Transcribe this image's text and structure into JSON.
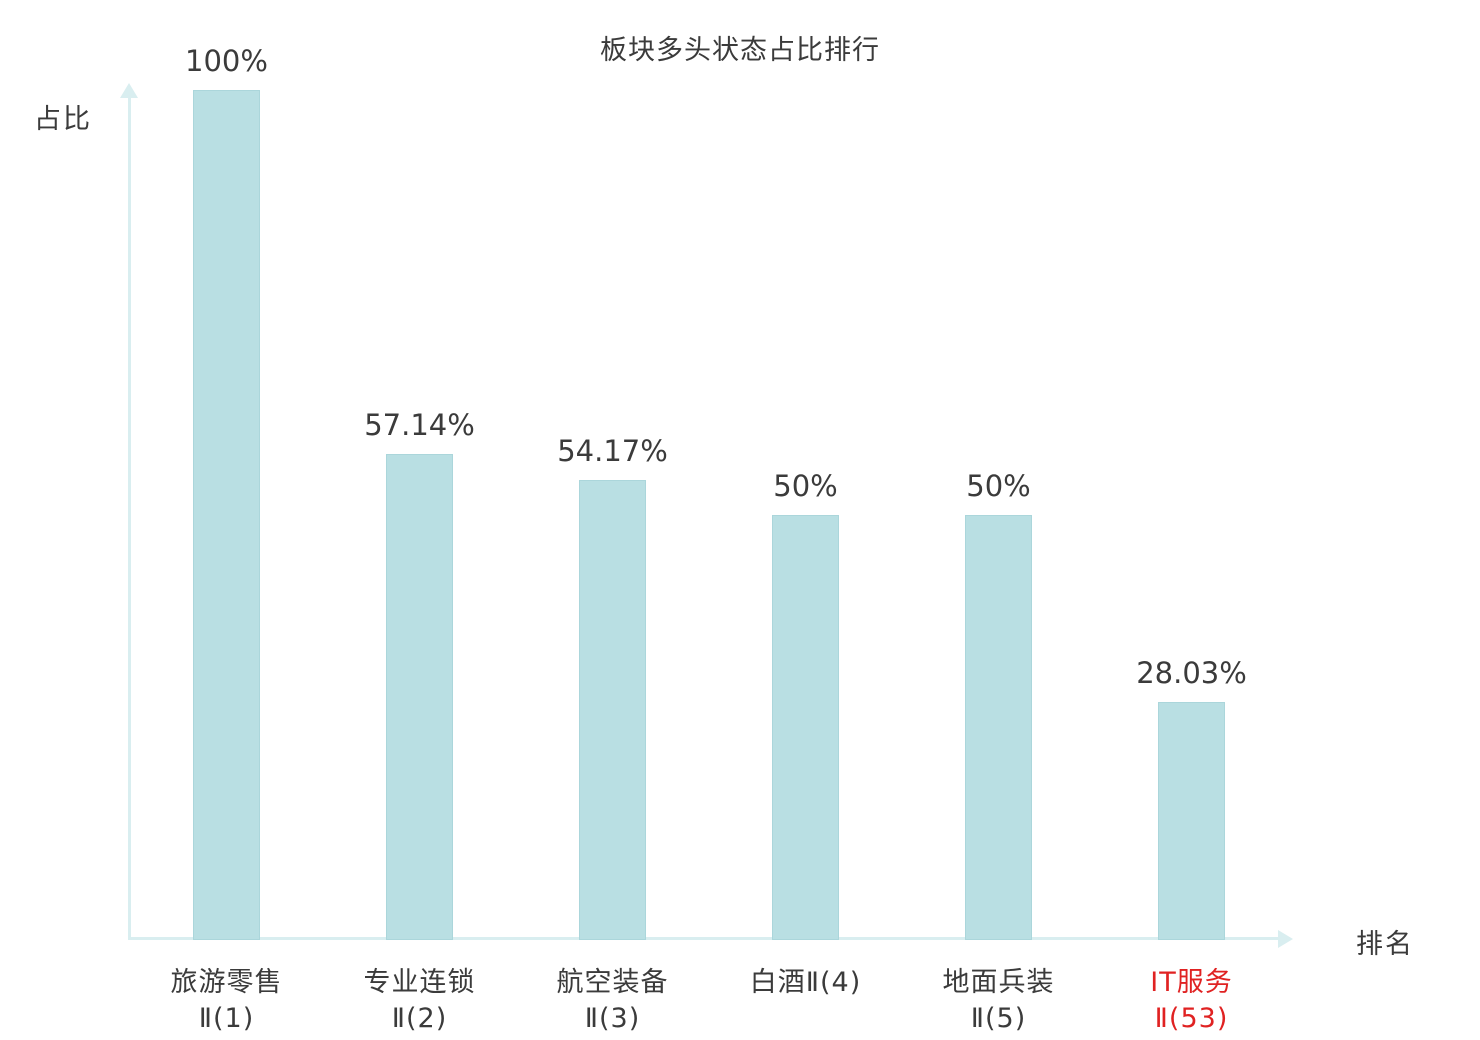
{
  "chart_data": {
    "type": "bar",
    "title": "板块多头状态占比排行",
    "xlabel": "排名",
    "ylabel": "占比",
    "categories": [
      {
        "lines": [
          "旅游零售",
          "Ⅱ(1)"
        ],
        "highlight": false
      },
      {
        "lines": [
          "专业连锁",
          "Ⅱ(2)"
        ],
        "highlight": false
      },
      {
        "lines": [
          "航空装备",
          "Ⅱ(3)"
        ],
        "highlight": false
      },
      {
        "lines": [
          "白酒Ⅱ(4)"
        ],
        "highlight": false
      },
      {
        "lines": [
          "地面兵装",
          "Ⅱ(5)"
        ],
        "highlight": false
      },
      {
        "lines": [
          "IT服务",
          "Ⅱ(53)"
        ],
        "highlight": true
      }
    ],
    "values": [
      100,
      57.14,
      54.17,
      50,
      50,
      28.03
    ],
    "value_labels": [
      "100%",
      "57.14%",
      "54.17%",
      "50%",
      "50%",
      "28.03%"
    ],
    "ylim": [
      0,
      100
    ],
    "grid": false,
    "legend": "none",
    "bar_color": "#b9dfe3",
    "axis_color": "#d9eef0",
    "text_color": "#3b3b3b",
    "highlight_color": "#e02222"
  }
}
